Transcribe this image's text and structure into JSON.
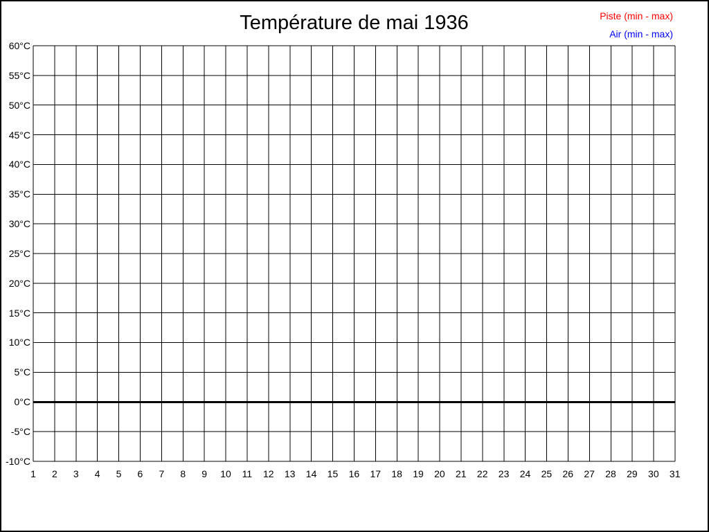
{
  "page": {
    "title": "Température de mai 1936"
  },
  "legend": [
    {
      "label": "Piste (min - max)",
      "color": "#ff0000"
    },
    {
      "label": "Air (min - max)",
      "color": "#0000ff"
    }
  ],
  "y_axis": {
    "tick_labels": [
      "60°C",
      "55°C",
      "50°C",
      "45°C",
      "40°C",
      "35°C",
      "30°C",
      "25°C",
      "20°C",
      "15°C",
      "10°C",
      "5°C",
      "0°C",
      "-5°C",
      "-10°C"
    ]
  },
  "x_axis": {
    "tick_labels": [
      "1",
      "2",
      "3",
      "4",
      "5",
      "6",
      "7",
      "8",
      "9",
      "10",
      "11",
      "12",
      "13",
      "14",
      "15",
      "16",
      "17",
      "18",
      "19",
      "20",
      "21",
      "22",
      "23",
      "24",
      "25",
      "26",
      "27",
      "28",
      "29",
      "30",
      "31"
    ]
  },
  "chart_data": {
    "type": "line",
    "title": "Température de mai 1936",
    "xlabel": "",
    "ylabel": "",
    "x": [
      1,
      2,
      3,
      4,
      5,
      6,
      7,
      8,
      9,
      10,
      11,
      12,
      13,
      14,
      15,
      16,
      17,
      18,
      19,
      20,
      21,
      22,
      23,
      24,
      25,
      26,
      27,
      28,
      29,
      30,
      31
    ],
    "xlim": [
      1,
      31
    ],
    "ylim": [
      -10,
      60
    ],
    "y_tick_step": 5,
    "grid": true,
    "grid_color": "#000000",
    "zero_line": {
      "value": 0,
      "color": "#000000",
      "width": 3
    },
    "legend_position": "top-right",
    "series": [
      {
        "name": "Piste (min - max)",
        "color": "#ff0000",
        "values": []
      },
      {
        "name": "Air (min - max)",
        "color": "#0000ff",
        "values": []
      }
    ]
  }
}
